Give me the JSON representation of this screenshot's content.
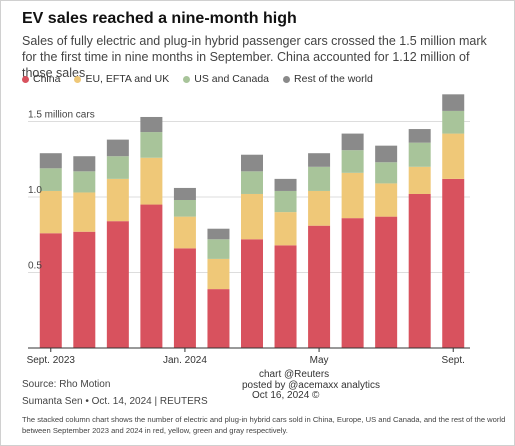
{
  "header": {
    "title": "EV sales reached a nine-month high",
    "subtitle": "Sales of fully electric and plug-in hybrid passenger cars crossed the 1.5 million mark for the first time in nine months in September. China accounted for 1.12 million of those sales."
  },
  "footer": {
    "source": "Source: Rho Motion",
    "byline": "Sumanta Sen • Oct. 14, 2024 | REUTERS",
    "credit_line1": "chart @Reuters",
    "credit_line2": "posted by @acemaxx analytics",
    "credit_line3": "Oct 16, 2024 ©",
    "note": "The stacked column chart shows the number of electric and plug-in hybrid cars sold in China, Europe, US and Canada, and the rest of the world between September 2023 and 2024 in red, yellow, green and gray respectively."
  },
  "colors": {
    "China": "#d8525e",
    "EU, EFTA and UK": "#efc878",
    "US and Canada": "#a8c49a",
    "Rest of the world": "#8a8a8a",
    "gridline": "#dddddd",
    "axis": "#333333"
  },
  "chart_data": {
    "type": "bar",
    "stacked": true,
    "categories": [
      "Sep 2023",
      "Oct 2023",
      "Nov 2023",
      "Dec 2023",
      "Jan 2024",
      "Feb 2024",
      "Mar 2024",
      "Apr 2024",
      "May 2024",
      "Jun 2024",
      "Jul 2024",
      "Aug 2024",
      "Sep 2024"
    ],
    "x_tick_labels": [
      {
        "index": 0,
        "label": "Sept. 2023"
      },
      {
        "index": 4,
        "label": "Jan. 2024"
      },
      {
        "index": 8,
        "label": "May"
      },
      {
        "index": 12,
        "label": "Sept."
      }
    ],
    "series": [
      {
        "name": "China",
        "values": [
          0.76,
          0.77,
          0.84,
          0.95,
          0.66,
          0.39,
          0.72,
          0.68,
          0.81,
          0.86,
          0.87,
          1.02,
          1.12
        ]
      },
      {
        "name": "EU, EFTA and UK",
        "values": [
          0.28,
          0.26,
          0.28,
          0.31,
          0.21,
          0.2,
          0.3,
          0.22,
          0.23,
          0.3,
          0.22,
          0.18,
          0.3
        ]
      },
      {
        "name": "US and Canada",
        "values": [
          0.15,
          0.14,
          0.15,
          0.17,
          0.11,
          0.13,
          0.15,
          0.14,
          0.16,
          0.15,
          0.14,
          0.16,
          0.15
        ]
      },
      {
        "name": "Rest of the world",
        "values": [
          0.1,
          0.1,
          0.11,
          0.1,
          0.08,
          0.07,
          0.11,
          0.08,
          0.09,
          0.11,
          0.11,
          0.09,
          0.11
        ]
      }
    ],
    "y_ticks": [
      {
        "value": 0.5,
        "label": "0.5"
      },
      {
        "value": 1.0,
        "label": "1.0"
      },
      {
        "value": 1.5,
        "label": "1.5 million cars"
      }
    ],
    "ylim": [
      0,
      1.75
    ],
    "grid": true,
    "legend_position": "top-left"
  }
}
